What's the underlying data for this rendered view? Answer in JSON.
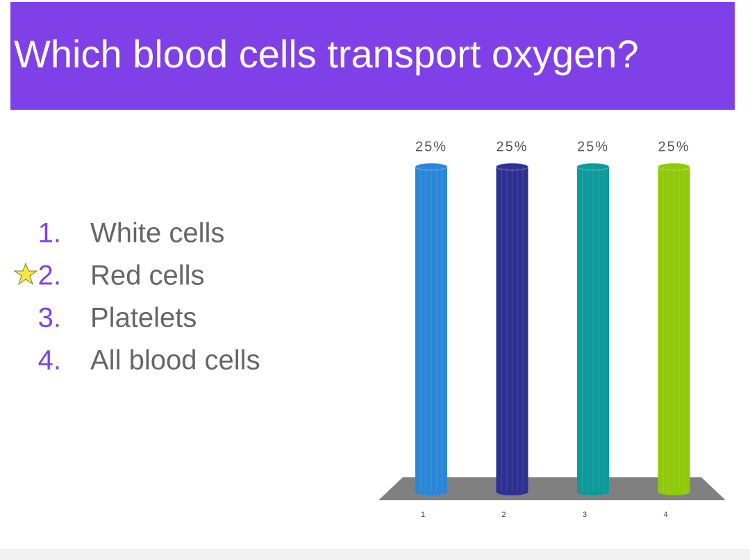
{
  "title": "Which blood cells transport oxygen?",
  "options": [
    {
      "number": "1.",
      "text": "White cells"
    },
    {
      "number": "2.",
      "text": "Red cells"
    },
    {
      "number": "3.",
      "text": "Platelets"
    },
    {
      "number": "4.",
      "text": "All blood cells"
    }
  ],
  "chart_data": {
    "type": "bar",
    "categories": [
      "1",
      "2",
      "3",
      "4"
    ],
    "values": [
      25,
      25,
      25,
      25
    ],
    "value_labels": [
      "25%",
      "25%",
      "25%",
      "25%"
    ],
    "colors": [
      "#2a87d8",
      "#2e3192",
      "#0e9a9a",
      "#8fc90a"
    ]
  }
}
